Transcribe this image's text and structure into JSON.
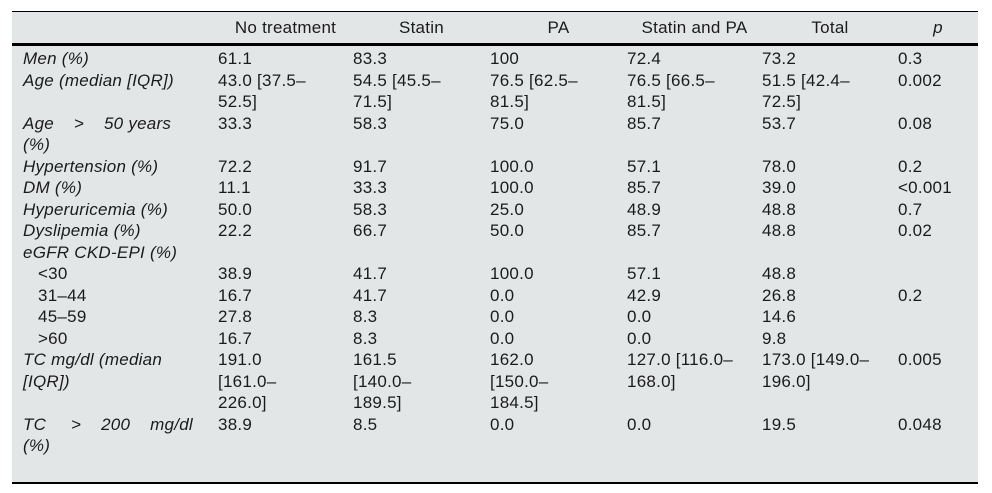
{
  "colors": {
    "panel_background": "#e3e6e7",
    "rule": "#000000",
    "text": "#1b1b1b"
  },
  "table": {
    "columns": [
      "",
      "No treatment",
      "Statin",
      "PA",
      "Statin and PA",
      "Total",
      "p"
    ],
    "rows": [
      {
        "label": "Men (%)",
        "indent": false,
        "values": [
          "61.1",
          "83.3",
          "100",
          "72.4",
          "73.2",
          "0.3"
        ]
      },
      {
        "label": "Age (median [IQR])",
        "indent": false,
        "values": [
          "43.0 [37.5–\n52.5]",
          "54.5 [45.5–\n71.5]",
          "76.5 [62.5–\n81.5]",
          "76.5 [66.5–\n81.5]",
          "51.5 [42.4–\n72.5]",
          "0.002"
        ]
      },
      {
        "label": "Age    >    50 years\n(%)",
        "indent": false,
        "values": [
          "33.3",
          "58.3",
          "75.0",
          "85.7",
          "53.7",
          "0.08"
        ]
      },
      {
        "label": "Hypertension (%)",
        "indent": false,
        "values": [
          "72.2",
          "91.7",
          "100.0",
          "57.1",
          "78.0",
          "0.2"
        ]
      },
      {
        "label": "DM (%)",
        "indent": false,
        "values": [
          "11.1",
          "33.3",
          "100.0",
          "85.7",
          "39.0",
          "<0.001"
        ]
      },
      {
        "label": "Hyperuricemia (%)",
        "indent": false,
        "values": [
          "50.0",
          "58.3",
          "25.0",
          "48.9",
          "48.8",
          "0.7"
        ]
      },
      {
        "label": "Dyslipemia (%)",
        "indent": false,
        "values": [
          "22.2",
          "66.7",
          "50.0",
          "85.7",
          "48.8",
          "0.02"
        ]
      },
      {
        "label": "eGFR CKD-EPI (%)",
        "indent": false,
        "values": [
          "",
          "",
          "",
          "",
          "",
          ""
        ]
      },
      {
        "label": "<30",
        "indent": true,
        "values": [
          "38.9",
          "41.7",
          "100.0",
          "57.1",
          "48.8",
          ""
        ]
      },
      {
        "label": "31–44",
        "indent": true,
        "values": [
          "16.7",
          "41.7",
          "0.0",
          "42.9",
          "26.8",
          "0.2"
        ]
      },
      {
        "label": "45–59",
        "indent": true,
        "values": [
          "27.8",
          "8.3",
          "0.0",
          "0.0",
          "14.6",
          ""
        ]
      },
      {
        "label": ">60",
        "indent": true,
        "values": [
          "16.7",
          "8.3",
          "0.0",
          "0.0",
          "9.8",
          ""
        ]
      },
      {
        "label": "TC mg/dl (median\n[IQR])",
        "indent": false,
        "values": [
          "191.0\n[161.0–\n226.0]",
          "161.5\n[140.0–\n189.5]",
          "162.0\n[150.0–\n184.5]",
          "127.0 [116.0–\n168.0]",
          "173.0 [149.0–\n196.0]",
          "0.005"
        ]
      },
      {
        "label": "TC     >    200    mg/dl\n(%)",
        "indent": false,
        "values": [
          "38.9",
          "8.5",
          "0.0",
          "0.0",
          "19.5",
          "0.048"
        ]
      }
    ]
  }
}
